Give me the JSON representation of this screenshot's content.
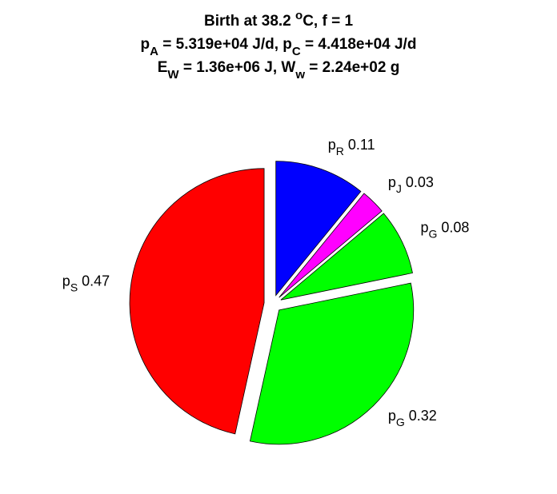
{
  "chart_data": {
    "type": "pie",
    "title": [
      [
        {
          "text": "Birth at 38.2 "
        },
        {
          "sup": "o"
        },
        {
          "text": "C, f = 1"
        }
      ],
      [
        {
          "text": "p"
        },
        {
          "sub": "A"
        },
        {
          "text": " = 5.319e+04 J/d, p"
        },
        {
          "sub": "C"
        },
        {
          "text": " = 4.418e+04 J/d"
        }
      ],
      [
        {
          "text": "E"
        },
        {
          "sub": "W"
        },
        {
          "text": " = 1.36e+06 J, W"
        },
        {
          "sub": "w"
        },
        {
          "text": " = 2.24e+02 g"
        }
      ]
    ],
    "labels": [
      {
        "text": "p",
        "sub": "R"
      },
      {
        "text": "p",
        "sub": "J"
      },
      {
        "text": "p",
        "sub": "G"
      },
      {
        "text": "p",
        "sub": "G"
      },
      {
        "text": "p",
        "sub": "S"
      }
    ],
    "values": [
      0.11,
      0.03,
      0.08,
      0.32,
      0.47
    ],
    "colors": [
      "#0000ff",
      "#ff00ff",
      "#00ff00",
      "#00ff00",
      "#ff0000"
    ]
  }
}
